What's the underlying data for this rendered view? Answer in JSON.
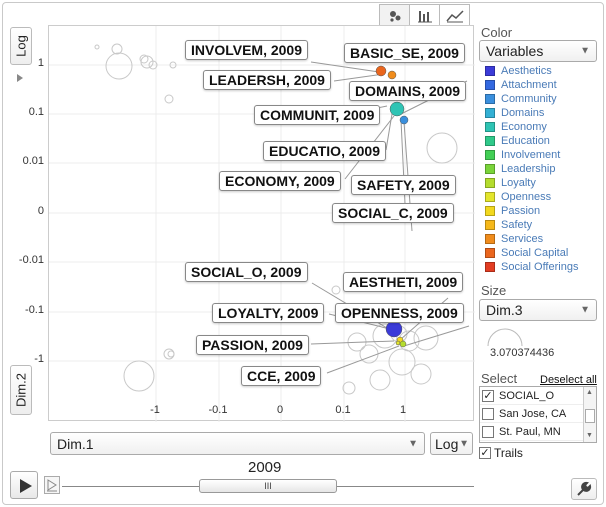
{
  "tabs": [
    {
      "name": "bubble",
      "active": true
    },
    {
      "name": "bar",
      "active": false
    },
    {
      "name": "line",
      "active": false
    }
  ],
  "y_axis": {
    "scale_label": "Log",
    "variable": "Dim.2"
  },
  "x_axis": {
    "variable": "Dim.1",
    "scale_label": "Log"
  },
  "plot": {
    "y_ticks": [
      "1",
      "0.1",
      "0.01",
      "0",
      "-0.01",
      "-0.1",
      "-1"
    ],
    "x_ticks": [
      "-1",
      "-0.1",
      "0",
      "0.1",
      "1"
    ],
    "labels": [
      "INVOLVEM, 2009",
      "BASIC_SE, 2009",
      "LEADERSH, 2009",
      "DOMAINS, 2009",
      "COMMUNIT, 2009",
      "EDUCATIO, 2009",
      "ECONOMY, 2009",
      "SAFETY, 2009",
      "SOCIAL_C, 2009",
      "SOCIAL_O, 2009",
      "AESTHETI, 2009",
      "LOYALTY, 2009",
      "OPENNESS, 2009",
      "PASSION, 2009",
      "CCE, 2009"
    ]
  },
  "color": {
    "heading": "Color",
    "selected": "Variables",
    "legend": [
      {
        "label": "Aesthetics",
        "color": "#3b3bd8"
      },
      {
        "label": "Attachment",
        "color": "#3368e0"
      },
      {
        "label": "Community",
        "color": "#3a8fdd"
      },
      {
        "label": "Domains",
        "color": "#34b0d4"
      },
      {
        "label": "Economy",
        "color": "#2fc4b4"
      },
      {
        "label": "Education",
        "color": "#2fc98a"
      },
      {
        "label": "Involvement",
        "color": "#42cf55"
      },
      {
        "label": "Leadership",
        "color": "#7ad43a"
      },
      {
        "label": "Loyalty",
        "color": "#b4dc2e"
      },
      {
        "label": "Openness",
        "color": "#e3e52c"
      },
      {
        "label": "Passion",
        "color": "#f2d81e"
      },
      {
        "label": "Safety",
        "color": "#f5b81a"
      },
      {
        "label": "Services",
        "color": "#f08c1c"
      },
      {
        "label": "Social Capital",
        "color": "#ea661e"
      },
      {
        "label": "Social Offerings",
        "color": "#e23d22"
      }
    ]
  },
  "size": {
    "heading": "Size",
    "selected": "Dim.3",
    "value": "3.070374436"
  },
  "select": {
    "heading": "Select",
    "deselect_label": "Deselect all",
    "items": [
      {
        "label": "SOCIAL_O",
        "checked": true
      },
      {
        "label": "San Jose, CA",
        "checked": false
      },
      {
        "label": "St. Paul, MN",
        "checked": false
      }
    ],
    "trails_label": "Trails",
    "trails_checked": true
  },
  "timeline": {
    "year": "2009",
    "thumb_mark": "III"
  }
}
